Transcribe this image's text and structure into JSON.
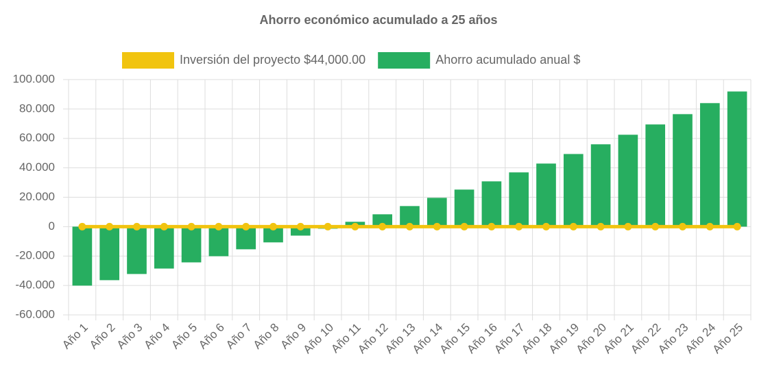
{
  "chart_data": {
    "type": "bar",
    "title": "Ahorro económico acumulado a 25 años",
    "categories": [
      "Año 1",
      "Año 2",
      "Año 3",
      "Año 4",
      "Año 5",
      "Año 6",
      "Año 7",
      "Año 8",
      "Año 9",
      "Año 10",
      "Año 11",
      "Año 12",
      "Año 13",
      "Año 14",
      "Año 15",
      "Año 16",
      "Año 17",
      "Año 18",
      "Año 19",
      "Año 20",
      "Año 21",
      "Año 22",
      "Año 23",
      "Año 24",
      "Año 25"
    ],
    "series": [
      {
        "name": "Inversión del proyecto $44,000.00",
        "type": "line",
        "color": "#f1c40f",
        "values": [
          0,
          0,
          0,
          0,
          0,
          0,
          0,
          0,
          0,
          0,
          0,
          0,
          0,
          0,
          0,
          0,
          0,
          0,
          0,
          0,
          0,
          0,
          0,
          0,
          0
        ]
      },
      {
        "name": "Ahorro acumulado anual $",
        "type": "bar",
        "color": "#27ae60",
        "values": [
          -40100,
          -36400,
          -32200,
          -28500,
          -24300,
          -20100,
          -15400,
          -10700,
          -6100,
          -1400,
          3300,
          8400,
          14000,
          19600,
          25200,
          30800,
          36900,
          42900,
          49400,
          56000,
          62500,
          69500,
          76500,
          84000,
          91900
        ]
      }
    ],
    "ylim": [
      -60000,
      100000
    ],
    "yticks": [
      {
        "value": -60000,
        "label": "-60.000"
      },
      {
        "value": -40000,
        "label": "-40.000"
      },
      {
        "value": -20000,
        "label": "-20.000"
      },
      0,
      {
        "value": 20000,
        "label": "20.000"
      },
      {
        "value": 40000,
        "label": "40.000"
      },
      {
        "value": 60000,
        "label": "60.000"
      },
      {
        "value": 80000,
        "label": "80.000"
      },
      {
        "value": 100000,
        "label": "100.000"
      }
    ],
    "grid": true
  }
}
